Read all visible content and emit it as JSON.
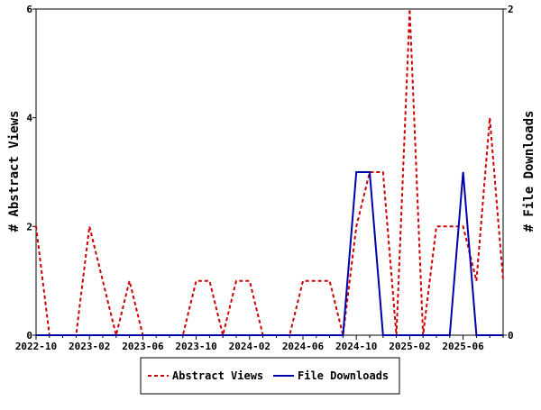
{
  "chart_data": {
    "type": "line",
    "title": "",
    "x": [
      "2022-10",
      "2022-11",
      "2022-12",
      "2023-01",
      "2023-02",
      "2023-03",
      "2023-04",
      "2023-05",
      "2023-06",
      "2023-07",
      "2023-08",
      "2023-09",
      "2023-10",
      "2023-11",
      "2023-12",
      "2024-01",
      "2024-02",
      "2024-03",
      "2024-04",
      "2024-05",
      "2024-06",
      "2024-07",
      "2024-08",
      "2024-09",
      "2024-10",
      "2024-11",
      "2024-12",
      "2025-01",
      "2025-02",
      "2025-03",
      "2025-04",
      "2025-05",
      "2025-06",
      "2025-07",
      "2025-08",
      "2025-09"
    ],
    "x_tick_labels": [
      "2022-10",
      "2023-02",
      "2023-06",
      "2023-10",
      "2024-02",
      "2024-06",
      "2024-10",
      "2025-02",
      "2025-06"
    ],
    "xlim": [
      "2022-10",
      "2025-09"
    ],
    "series": [
      {
        "name": "Abstract Views",
        "axis": "left",
        "color": "#cc0000",
        "style": "dashed",
        "values": [
          2,
          0,
          0,
          0,
          2,
          1,
          0,
          1,
          0,
          0,
          0,
          0,
          1,
          1,
          0,
          1,
          1,
          0,
          0,
          0,
          1,
          1,
          1,
          0,
          2,
          3,
          3,
          0,
          6,
          0,
          2,
          2,
          2,
          1,
          4,
          1
        ]
      },
      {
        "name": "File Downloads",
        "axis": "right",
        "color": "#0000aa",
        "style": "solid",
        "values": [
          0,
          0,
          0,
          0,
          0,
          0,
          0,
          0,
          0,
          0,
          0,
          0,
          0,
          0,
          0,
          0,
          0,
          0,
          0,
          0,
          0,
          0,
          0,
          0,
          1,
          1,
          0,
          0,
          0,
          0,
          0,
          0,
          1,
          0,
          0,
          0
        ]
      }
    ],
    "ylabel_left": "# Abstract Views",
    "ylabel_right": "# File Downloads",
    "ylim_left": [
      0,
      6
    ],
    "ylim_right": [
      0,
      2
    ],
    "yticks_left": [
      0,
      2,
      4,
      6
    ],
    "yticks_right": [
      0,
      2
    ],
    "grid": false,
    "legend_position": "bottom"
  }
}
